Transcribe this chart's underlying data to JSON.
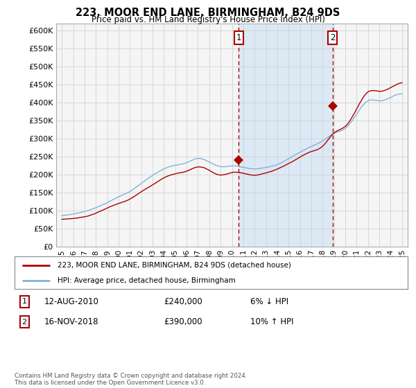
{
  "title": "223, MOOR END LANE, BIRMINGHAM, B24 9DS",
  "subtitle": "Price paid vs. HM Land Registry's House Price Index (HPI)",
  "legend_line1": "223, MOOR END LANE, BIRMINGHAM, B24 9DS (detached house)",
  "legend_line2": "HPI: Average price, detached house, Birmingham",
  "sale1_label": "1",
  "sale1_date": "12-AUG-2010",
  "sale1_price": "£240,000",
  "sale1_change": "6% ↓ HPI",
  "sale1_year": 2010.6,
  "sale1_value": 240000,
  "sale2_label": "2",
  "sale2_date": "16-NOV-2018",
  "sale2_price": "£390,000",
  "sale2_change": "10% ↑ HPI",
  "sale2_year": 2018.87,
  "sale2_value": 390000,
  "plot_bg_color": "#f5f5f5",
  "shade_color": "#dce9f5",
  "red_color": "#aa0000",
  "blue_color": "#7fb3d9",
  "grid_color": "#cccccc",
  "marker_box_color": "#aa0000",
  "footnote": "Contains HM Land Registry data © Crown copyright and database right 2024.\nThis data is licensed under the Open Government Licence v3.0.",
  "ylim": [
    0,
    620000
  ],
  "yticks": [
    0,
    50000,
    100000,
    150000,
    200000,
    250000,
    300000,
    350000,
    400000,
    450000,
    500000,
    550000,
    600000
  ],
  "xlim": [
    1994.5,
    2025.5
  ],
  "xticks": [
    1995,
    1996,
    1997,
    1998,
    1999,
    2000,
    2001,
    2002,
    2003,
    2004,
    2005,
    2006,
    2007,
    2008,
    2009,
    2010,
    2011,
    2012,
    2013,
    2014,
    2015,
    2016,
    2017,
    2018,
    2019,
    2020,
    2021,
    2022,
    2023,
    2024,
    2025
  ]
}
